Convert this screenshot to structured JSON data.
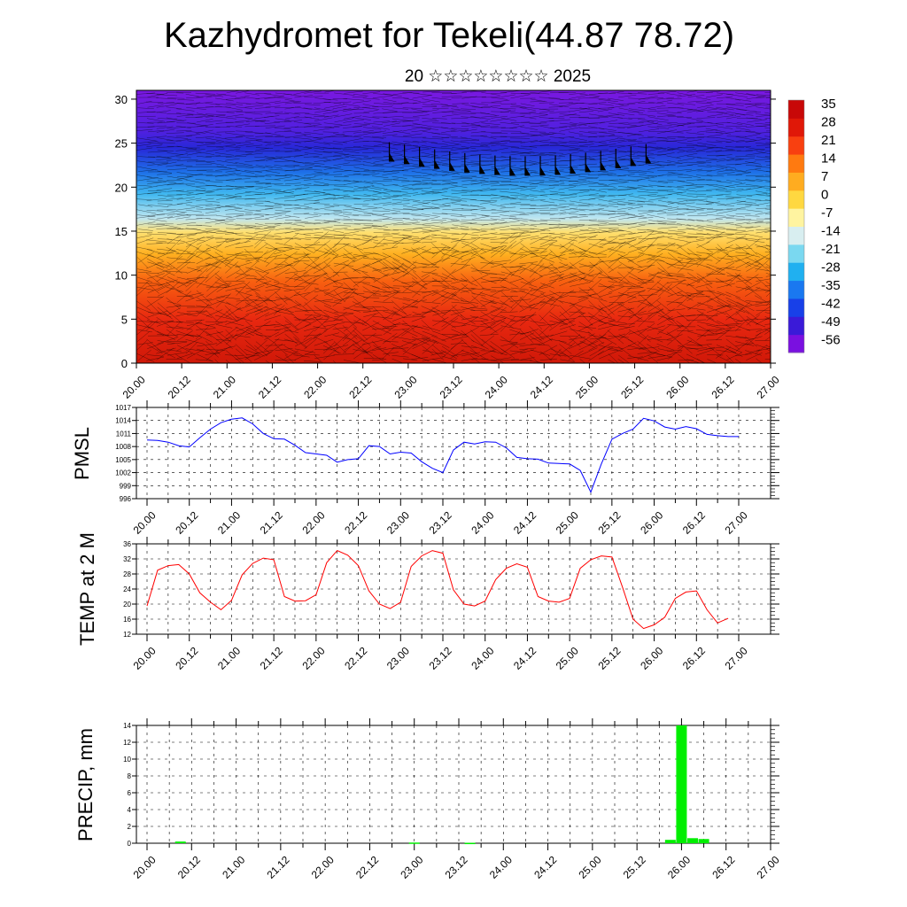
{
  "header": {
    "title": "Kazhydromet for Tekeli(44.87 78.72)",
    "subtitle": "20 ☆☆☆☆☆☆☆☆ 2025"
  },
  "x_tick_labels": [
    "20.00",
    "20.12",
    "21.00",
    "21.12",
    "22.00",
    "22.12",
    "23.00",
    "23.12",
    "24.00",
    "24.12",
    "25.00",
    "25.12",
    "26.00",
    "26.12",
    "27.00"
  ],
  "chart_data": [
    {
      "type": "heatmap",
      "xlabel": "",
      "ylabel": "",
      "x_range_hours": [
        0,
        168
      ],
      "ylim": [
        0,
        31
      ],
      "y_ticks": [
        0,
        5,
        10,
        15,
        20,
        25,
        30
      ],
      "colorbar": {
        "labels": [
          "35",
          "28",
          "21",
          "14",
          "7",
          "0",
          "-7",
          "-14",
          "-21",
          "-28",
          "-35",
          "-42",
          "-49",
          "-56"
        ],
        "colors": [
          "#7a10e0",
          "#3a1ad8",
          "#1840e8",
          "#1a78f0",
          "#20b0f0",
          "#7ad8f0",
          "#d8eef0",
          "#fff4a0",
          "#ffd840",
          "#ffac20",
          "#ff7a10",
          "#f84010",
          "#e01808",
          "#c80808"
        ]
      },
      "temperature_profile": [
        {
          "z": 0,
          "t": 32
        },
        {
          "z": 5,
          "t": 28
        },
        {
          "z": 10,
          "t": 14
        },
        {
          "z": 15,
          "t": -14
        },
        {
          "z": 18,
          "t": -28
        },
        {
          "z": 21,
          "t": -42
        },
        {
          "z": 25,
          "t": -60
        },
        {
          "z": 28,
          "t": -56
        },
        {
          "z": 31,
          "t": -58
        }
      ]
    },
    {
      "type": "line",
      "ylabel": "PMSL",
      "ylim": [
        996,
        1017
      ],
      "y_ticks": [
        996,
        999,
        1002,
        1005,
        1008,
        1011,
        1014,
        1017
      ],
      "series": [
        {
          "color": "#0000ff",
          "x": [
            0,
            3,
            6,
            9,
            12,
            15,
            18,
            21,
            24,
            27,
            30,
            33,
            36,
            39,
            42,
            45,
            48,
            51,
            54,
            57,
            60,
            63,
            66,
            69,
            72,
            75,
            78,
            81,
            84,
            87,
            90,
            93,
            96,
            99,
            102,
            105,
            108,
            111,
            114,
            117,
            120,
            123,
            126,
            129,
            132,
            135,
            138,
            141,
            144,
            147,
            150,
            153,
            156,
            159,
            162,
            165,
            168
          ],
          "values": [
            1009.5,
            1009.4,
            1009.0,
            1008.2,
            1007.9,
            1010.0,
            1012.0,
            1013.5,
            1014.3,
            1014.6,
            1013.2,
            1011.0,
            1009.8,
            1009.7,
            1008.3,
            1006.6,
            1006.3,
            1006.0,
            1004.4,
            1005.0,
            1005.2,
            1008.2,
            1008.0,
            1006.3,
            1006.7,
            1006.5,
            1004.5,
            1003.0,
            1002.0,
            1007.2,
            1009.0,
            1008.6,
            1009.1,
            1009.0,
            1007.7,
            1005.5,
            1005.2,
            1005.1,
            1004.2,
            1004.1,
            1004.0,
            1002.5,
            997.5,
            1004.0,
            1009.7,
            1011.0,
            1012.0,
            1014.5,
            1013.9,
            1012.5,
            1012.0,
            1012.6,
            1012.1,
            1010.8,
            1010.5,
            1010.3,
            1010.3
          ]
        }
      ]
    },
    {
      "type": "line",
      "ylabel": "TEMP at 2 M",
      "ylim": [
        12,
        36
      ],
      "y_ticks": [
        12,
        16,
        20,
        24,
        28,
        32,
        36
      ],
      "series": [
        {
          "color": "#ff0000",
          "x": [
            0,
            3,
            6,
            9,
            12,
            15,
            18,
            21,
            24,
            27,
            30,
            33,
            36,
            39,
            42,
            45,
            48,
            51,
            54,
            57,
            60,
            63,
            66,
            69,
            72,
            75,
            78,
            81,
            84,
            87,
            90,
            93,
            96,
            99,
            102,
            105,
            108,
            111,
            114,
            117,
            120,
            123,
            126,
            129,
            132,
            135,
            138,
            141,
            144,
            147,
            150,
            153,
            156,
            159,
            162,
            165
          ],
          "values": [
            19.5,
            29.0,
            30.2,
            30.5,
            28.0,
            23.0,
            20.5,
            18.5,
            21.0,
            27.8,
            30.8,
            32.2,
            31.8,
            22.0,
            20.8,
            20.9,
            22.5,
            31.0,
            34.2,
            33.0,
            30.2,
            23.5,
            20.0,
            18.8,
            20.5,
            30.0,
            32.8,
            34.2,
            33.5,
            23.8,
            20.0,
            19.5,
            20.8,
            26.5,
            29.5,
            30.7,
            29.8,
            22.0,
            20.8,
            20.5,
            21.5,
            29.5,
            31.8,
            32.8,
            32.5,
            24.5,
            16.0,
            13.5,
            14.5,
            16.5,
            21.5,
            23.2,
            23.5,
            18.5,
            15.0,
            16.2
          ]
        }
      ]
    },
    {
      "type": "bar",
      "ylabel": "PRECIP, mm",
      "ylim": [
        0,
        14
      ],
      "y_ticks": [
        0,
        2,
        4,
        6,
        8,
        10,
        12,
        14
      ],
      "bar_color": "#00ee00",
      "bars": [
        {
          "x": 9,
          "value": 0.2
        },
        {
          "x": 72,
          "value": 0.08
        },
        {
          "x": 87,
          "value": 0.05
        },
        {
          "x": 141,
          "value": 0.4
        },
        {
          "x": 144,
          "value": 14.0
        },
        {
          "x": 147,
          "value": 0.6
        },
        {
          "x": 150,
          "value": 0.5
        }
      ]
    }
  ]
}
